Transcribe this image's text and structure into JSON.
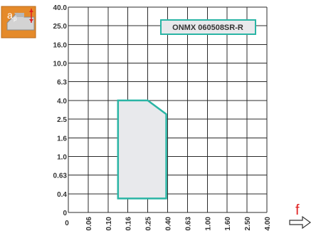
{
  "chart_data": {
    "type": "area",
    "y_axis": {
      "symbol": "a",
      "symbol_sub": "p",
      "tick_labels": [
        "0",
        "0.4",
        "0.63",
        "1.0",
        "1.6",
        "2.5",
        "4.0",
        "6.3",
        "10.0",
        "16.0",
        "25.0",
        "40.0"
      ]
    },
    "x_axis": {
      "symbol": "f",
      "tick_labels": [
        "0",
        "0.06",
        "0.10",
        "0.16",
        "0.25",
        "0.40",
        "0.63",
        "1.00",
        "1.60",
        "2.50",
        "4.00"
      ]
    },
    "series": [
      {
        "name": "ONMX 060508SR-R",
        "color": "#2ab5a5",
        "fill": "#e8e9ec",
        "polygon": [
          {
            "x": 0.13,
            "y": 0.3
          },
          {
            "x": 0.13,
            "y": 4.0
          },
          {
            "x": 0.25,
            "y": 4.0
          },
          {
            "x": 0.39,
            "y": 2.9
          },
          {
            "x": 0.39,
            "y": 0.3
          }
        ]
      }
    ],
    "legend_position": "top-right",
    "grid": true
  },
  "colors": {
    "grid": "#2b2b2b",
    "accent": "#2ab5a5",
    "axis_symbol": "#e02020",
    "icon_bg": "#e58a2a"
  },
  "icons": {
    "insert_icon": "depth-of-cut-icon",
    "arrow_icon": "feed-arrow-icon"
  }
}
